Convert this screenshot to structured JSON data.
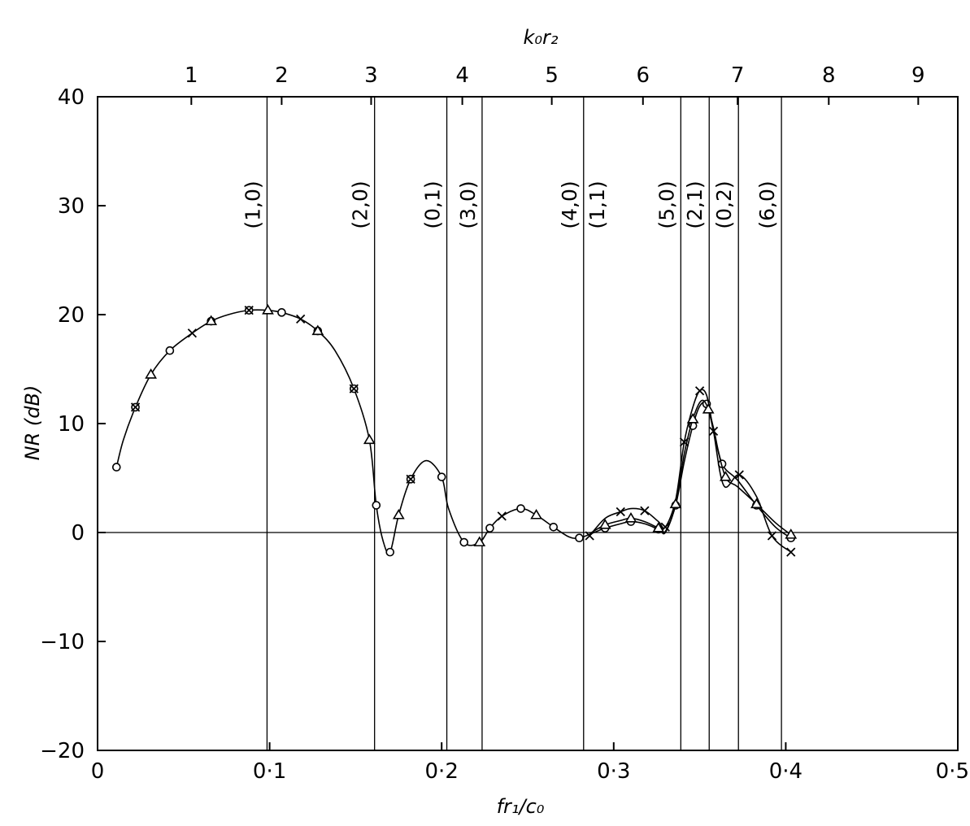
{
  "chart_data": {
    "type": "line",
    "title": "",
    "xlabel": "fr₁/c₀",
    "ylabel": "NR (dB)",
    "top_xlabel": "k₀r₂",
    "xlim": [
      0,
      0.5
    ],
    "ylim": [
      -20,
      40
    ],
    "grid": false,
    "legend": "none",
    "x_ticks": [
      0,
      0.1,
      0.2,
      0.3,
      0.4,
      0.5
    ],
    "x_tick_labels": [
      "0",
      "0·1",
      "0·2",
      "0·3",
      "0·4",
      "0·5"
    ],
    "y_ticks": [
      40,
      30,
      20,
      10,
      0,
      -10,
      -20
    ],
    "y_tick_labels": [
      "40",
      "30",
      "20",
      "10",
      "0",
      "−10",
      "−20"
    ],
    "top_ticks": [
      {
        "x": 0.0545,
        "label": "1"
      },
      {
        "x": 0.107,
        "label": "2"
      },
      {
        "x": 0.159,
        "label": "3"
      },
      {
        "x": 0.212,
        "label": "4"
      },
      {
        "x": 0.264,
        "label": "5"
      },
      {
        "x": 0.317,
        "label": "6"
      },
      {
        "x": 0.372,
        "label": "7"
      },
      {
        "x": 0.425,
        "label": "8"
      },
      {
        "x": 0.477,
        "label": "9"
      }
    ],
    "mode_lines": [
      {
        "x": 0.0985,
        "label": "(1,0)"
      },
      {
        "x": 0.161,
        "label": "(2,0)"
      },
      {
        "x": 0.203,
        "label": "(0,1)"
      },
      {
        "x": 0.2235,
        "label": "(3,0)"
      },
      {
        "x": 0.2825,
        "label": "(4,0)"
      },
      {
        "x": 0.2825,
        "label": "(1,1)"
      },
      {
        "x": 0.339,
        "label": "(5,0)"
      },
      {
        "x": 0.3555,
        "label": "(2,1)"
      },
      {
        "x": 0.3725,
        "label": "(0,2)"
      },
      {
        "x": 0.3975,
        "label": "(6,0)"
      }
    ],
    "series": [
      {
        "marker": "circle",
        "x": [
          0.011,
          0.015,
          0.022,
          0.031,
          0.042,
          0.055,
          0.066,
          0.076,
          0.088,
          0.099,
          0.107,
          0.118,
          0.128,
          0.138,
          0.149,
          0.158,
          0.162,
          0.166,
          0.17,
          0.175,
          0.182,
          0.191,
          0.2,
          0.204,
          0.213,
          0.222,
          0.228,
          0.235,
          0.246,
          0.255,
          0.265,
          0.274,
          0.28,
          0.287,
          0.295,
          0.304,
          0.31,
          0.318,
          0.326,
          0.33,
          0.336,
          0.341,
          0.346,
          0.35,
          0.354,
          0.358,
          0.363,
          0.372,
          0.383,
          0.394,
          0.403
        ],
        "y": [
          6,
          8.5,
          11.5,
          14.5,
          16.7,
          18.3,
          19.4,
          20.0,
          20.4,
          20.4,
          20.2,
          19.6,
          18.5,
          16.7,
          13.2,
          8.5,
          2.5,
          -0.8,
          -1.8,
          1.6,
          4.9,
          6.6,
          5.1,
          2.2,
          -0.9,
          -0.9,
          0.4,
          1.5,
          2.2,
          1.6,
          0.5,
          -0.4,
          -0.5,
          -0.1,
          0.4,
          0.8,
          1.0,
          0.8,
          0.3,
          0.1,
          2.5,
          6.5,
          9.8,
          11.6,
          11.8,
          9.6,
          6.3,
          4.8,
          2.5,
          0.5,
          -0.5
        ]
      },
      {
        "marker": "cross",
        "x": [
          0.286,
          0.295,
          0.304,
          0.31,
          0.318,
          0.326,
          0.33,
          0.336,
          0.341,
          0.346,
          0.35,
          0.354,
          0.358,
          0.364,
          0.373,
          0.383,
          0.392,
          0.403
        ],
        "y": [
          -0.3,
          1.3,
          1.9,
          2.2,
          2.0,
          1.0,
          0.5,
          3.0,
          8.3,
          11.5,
          13.0,
          12.6,
          9.3,
          4.3,
          5.3,
          3.3,
          -0.3,
          -1.8
        ]
      },
      {
        "marker": "triangle",
        "x": [
          0.286,
          0.295,
          0.304,
          0.31,
          0.318,
          0.326,
          0.33,
          0.336,
          0.341,
          0.346,
          0.351,
          0.355,
          0.359,
          0.365,
          0.372,
          0.383,
          0.394,
          0.403
        ],
        "y": [
          -0.1,
          0.7,
          1.1,
          1.3,
          1.0,
          0.4,
          0.0,
          2.6,
          7.2,
          10.4,
          12.1,
          11.3,
          8.6,
          5.1,
          4.2,
          2.6,
          0.9,
          -0.2
        ]
      }
    ]
  }
}
